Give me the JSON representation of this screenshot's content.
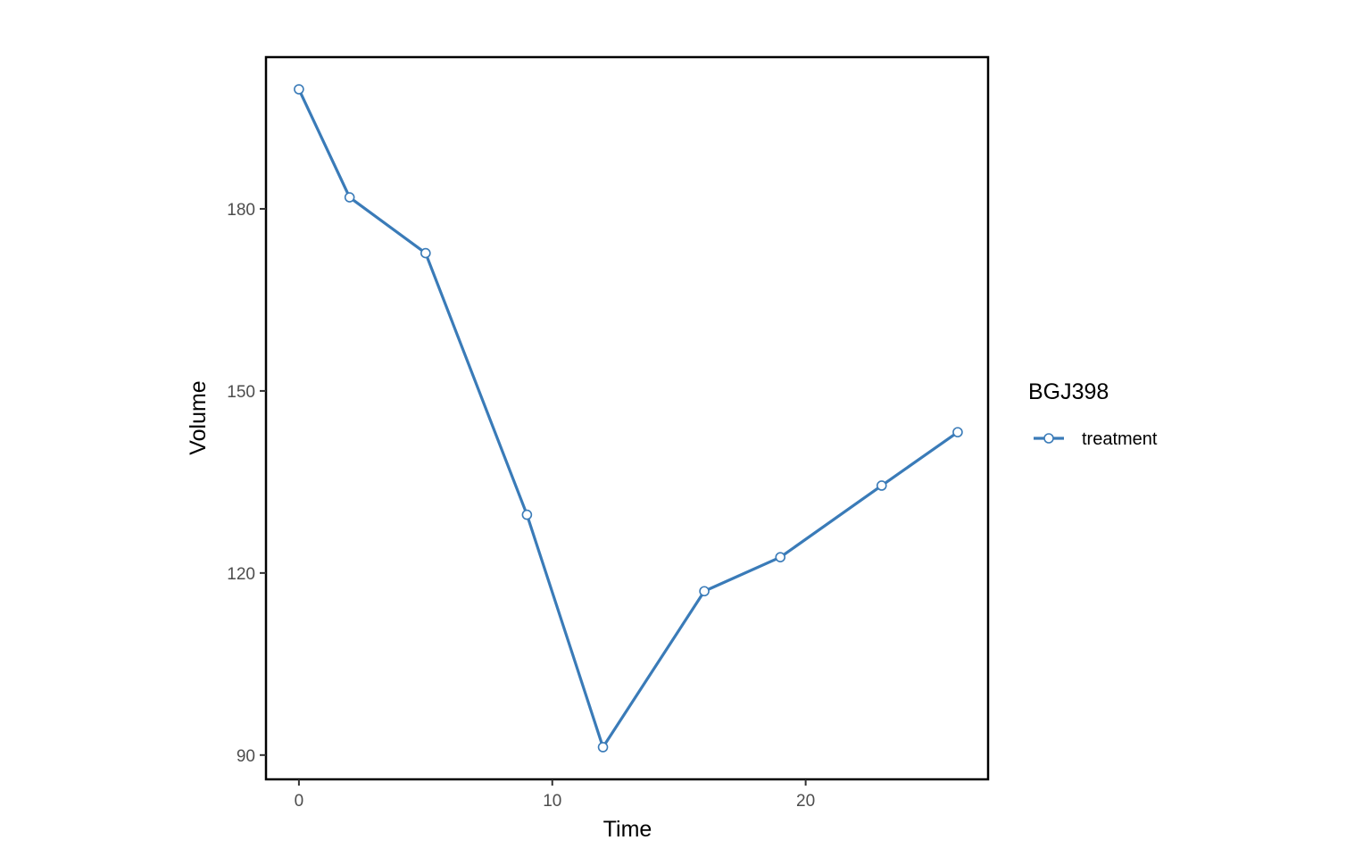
{
  "chart_data": {
    "type": "line",
    "xlabel": "Time",
    "ylabel": "Volume",
    "xlim": [
      -1.3,
      27.2
    ],
    "ylim": [
      86,
      205
    ],
    "x_ticks": [
      0,
      10,
      20
    ],
    "y_ticks": [
      90,
      120,
      150,
      180
    ],
    "grid": false,
    "legend": {
      "title": "BGJ398",
      "placement": "right"
    },
    "series": [
      {
        "name": "treatment",
        "color": "#3a7bb8",
        "x": [
          0,
          2,
          5,
          9,
          12,
          16,
          19,
          23,
          26
        ],
        "y": [
          199.7,
          181.9,
          172.7,
          129.6,
          91.3,
          117.0,
          122.6,
          134.4,
          143.2
        ]
      }
    ]
  }
}
